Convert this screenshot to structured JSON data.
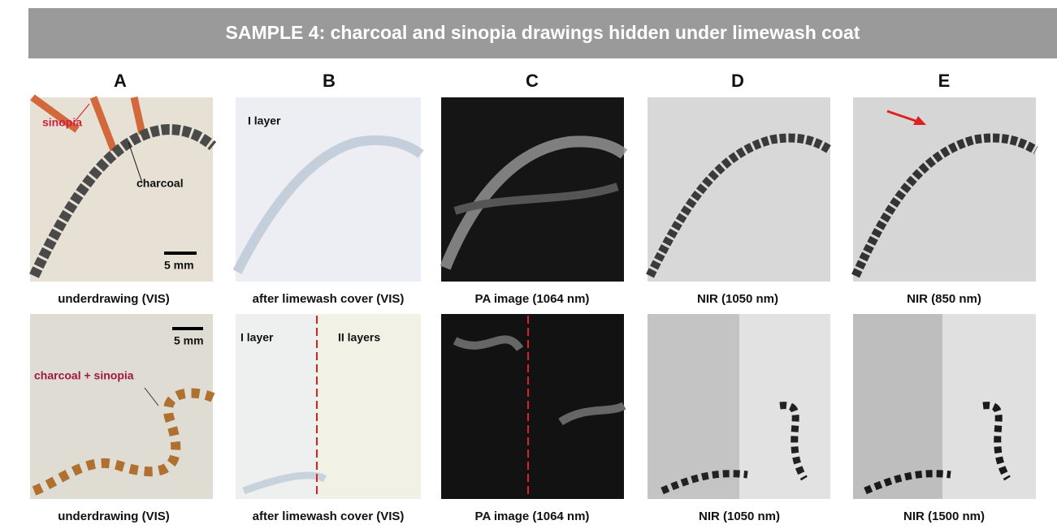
{
  "title": "SAMPLE 4: charcoal and sinopia drawings hidden under limewash coat",
  "columns": [
    "A",
    "B",
    "C",
    "D",
    "E"
  ],
  "rows": [
    {
      "captions": [
        "underdrawing (VIS)",
        "after limewash cover (VIS)",
        "PA image (1064 nm)",
        "NIR (1050 nm)",
        "NIR (850 nm)"
      ],
      "annotations": {
        "sinopia": "sinopia",
        "charcoal": "charcoal",
        "scale": "5 mm",
        "layer": "I layer"
      }
    },
    {
      "captions": [
        "underdrawing (VIS)",
        "after limewash cover (VIS)",
        "PA image (1064 nm)",
        "NIR (1050 nm)",
        "NIR (1500 nm)"
      ],
      "annotations": {
        "scale": "5 mm",
        "mix": "charcoal + sinopia",
        "layer1": "I layer",
        "layer2": "II layers"
      }
    }
  ]
}
